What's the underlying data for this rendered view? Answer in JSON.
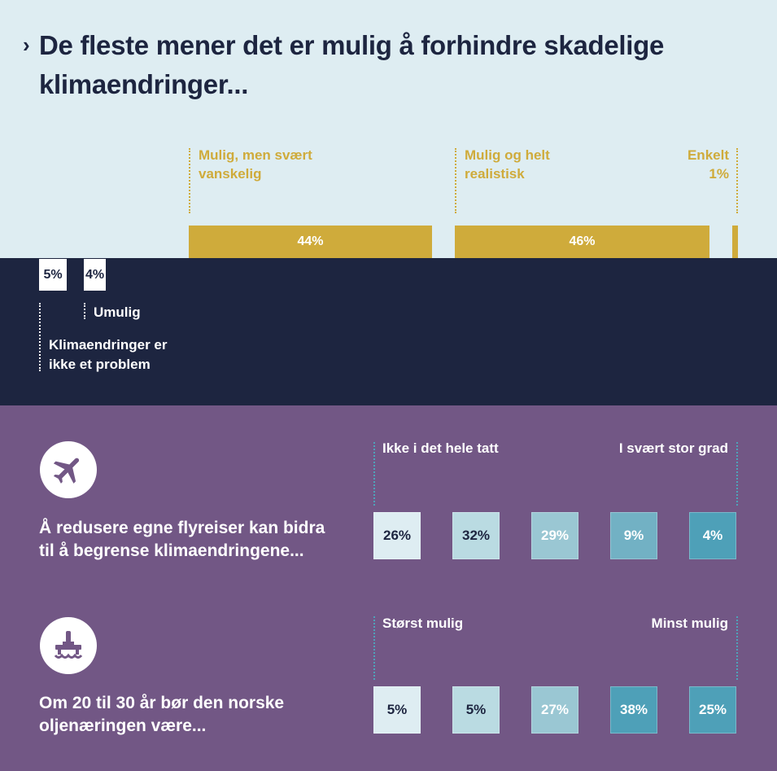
{
  "title": "De fleste mener det er mulig å forhindre skadelige klimaendringer...",
  "chevron": "›",
  "icons": {
    "plane": "airplane-icon",
    "oil": "oil-platform-icon"
  },
  "colors": {
    "light_bg": "#deedf2",
    "navy": "#1d2540",
    "purple": "#725785",
    "gold": "#cfab3b",
    "scale": [
      "#deedf2",
      "#badbe2",
      "#9ac7d3",
      "#72b1c4",
      "#4ea0b8"
    ]
  },
  "chart_data": [
    {
      "type": "bar",
      "title": "De fleste mener det er mulig å forhindre skadelige klimaendringer...",
      "categories": [
        "Klimaendringer er ikke et problem",
        "Umulig",
        "Mulig, men svært vanskelig",
        "Mulig og helt realistisk",
        "Enkelt"
      ],
      "values": [
        5,
        4,
        44,
        46,
        1
      ],
      "value_labels": [
        "5%",
        "4%",
        "44%",
        "46%",
        "1%"
      ],
      "label_lines": {
        "ikke_problem": [
          "Klimaendringer er",
          "ikke et problem"
        ],
        "umulig": [
          "Umulig"
        ],
        "vanskelig": [
          "Mulig, men svært",
          "vanskelig"
        ],
        "realistisk": [
          "Mulig og helt",
          "realistisk"
        ],
        "enkelt": [
          "Enkelt",
          "1%"
        ]
      }
    },
    {
      "type": "table",
      "question": [
        "Å redusere egne flyreiser kan bidra",
        "til å begrense klimaendringene..."
      ],
      "scale_left": "Ikke i det hele tatt",
      "scale_right": "I svært stor grad",
      "values": [
        26,
        32,
        29,
        9,
        4
      ],
      "labels": [
        "26%",
        "32%",
        "29%",
        "9%",
        "4%"
      ]
    },
    {
      "type": "table",
      "question": [
        "Om 20 til 30 år bør den norske",
        "oljenæringen være..."
      ],
      "scale_left": "Størst mulig",
      "scale_right": "Minst mulig",
      "values": [
        5,
        5,
        27,
        38,
        25
      ],
      "labels": [
        "5%",
        "5%",
        "27%",
        "38%",
        "25%"
      ]
    }
  ]
}
